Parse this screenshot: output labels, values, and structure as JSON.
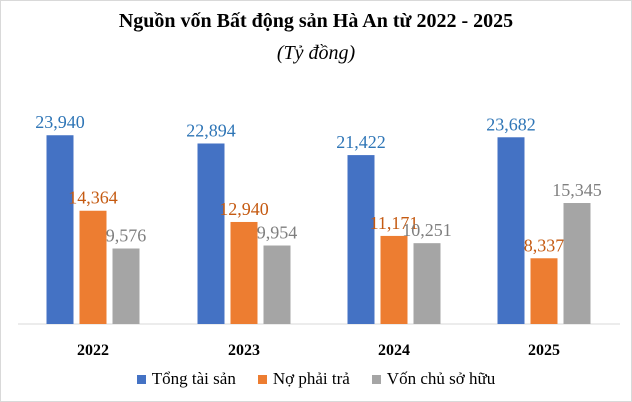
{
  "title": "Nguồn vốn Bất động sản Hà An từ 2022 - 2025",
  "subtitle": "(Tỷ đồng)",
  "chart_data": {
    "type": "bar",
    "categories": [
      "2022",
      "2023",
      "2024",
      "2025"
    ],
    "series": [
      {
        "name": "Tổng tài sản",
        "values": [
          23940,
          22894,
          21422,
          23682
        ],
        "labels": [
          "23,940",
          "22,894",
          "21,422",
          "23,682"
        ],
        "color": "#4472C4",
        "label_color": "#2E75B6"
      },
      {
        "name": "Nợ phải trả",
        "values": [
          14364,
          12940,
          11171,
          8337
        ],
        "labels": [
          "14,364",
          "12,940",
          "11,171",
          "8,337"
        ],
        "color": "#ED7D31",
        "label_color": "#C55A11"
      },
      {
        "name": "Vốn chủ sở hữu",
        "values": [
          9576,
          9954,
          10251,
          15345
        ],
        "labels": [
          "9,576",
          "9,954",
          "10,251",
          "15,345"
        ],
        "color": "#A5A5A5",
        "label_color": "#7F7F7F"
      }
    ],
    "ylim": [
      0,
      26000
    ],
    "grid": false,
    "legend": "bottom"
  }
}
